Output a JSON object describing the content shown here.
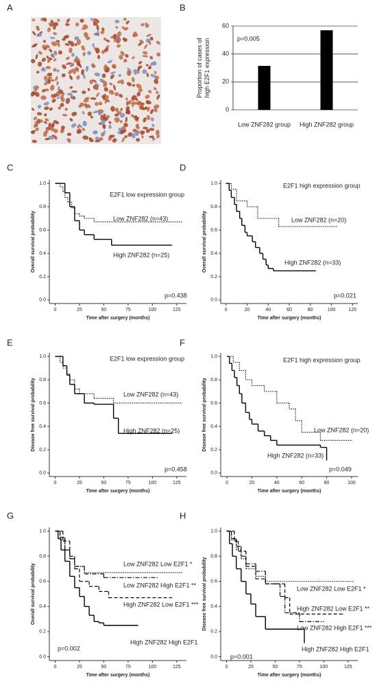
{
  "chart_data": [
    {
      "type": "image",
      "panel": "A"
    },
    {
      "type": "bar",
      "panel": "B",
      "y_label": [
        "Proportion of cases of",
        "high E2F1 expression"
      ],
      "categories": [
        "Low ZNF282 group",
        "High ZNF282 group"
      ],
      "values": [
        31.5,
        57
      ],
      "color": "#000000",
      "ylim": [
        0,
        60
      ],
      "yticks": [
        0,
        20,
        40,
        60
      ],
      "grid": true,
      "annotations": [
        "p=0.005"
      ]
    },
    {
      "type": "step",
      "panel": "C",
      "y_label": "Overall survival probability",
      "x_label": "Time after surgery (months)",
      "xlim": [
        -6,
        135
      ],
      "ylim": [
        -0.03,
        1.03
      ],
      "xticks": [
        0,
        25,
        50,
        75,
        100,
        125
      ],
      "yticks": [
        {
          "value": 0,
          "label": "0.0"
        },
        0.2,
        0.4,
        0.6,
        0.8,
        {
          "value": 1,
          "label": "1.0"
        }
      ],
      "series": [
        {
          "style": "dotted",
          "color": "#000000",
          "x": [
            0,
            5,
            8,
            10,
            13,
            17,
            20,
            25,
            30,
            40,
            130
          ],
          "values": [
            1,
            0.97,
            0.93,
            0.88,
            0.84,
            0.79,
            0.74,
            0.72,
            0.7,
            0.67,
            0.67
          ]
        },
        {
          "style": "solid",
          "color": "#000000",
          "x": [
            0,
            10,
            15,
            20,
            25,
            30,
            40,
            58,
            120
          ],
          "values": [
            1,
            0.92,
            0.8,
            0.68,
            0.6,
            0.56,
            0.52,
            0.47,
            0.47
          ]
        }
      ],
      "annotations": [
        "E2F1 low expression group",
        "Low ZNF282 (n=43)",
        "High ZNF282 (n=25)",
        "p=0.438"
      ]
    },
    {
      "type": "step",
      "panel": "D",
      "y_label": "Overall survival probability",
      "x_label": "Time after surgery (months)",
      "xlim": [
        -5,
        125
      ],
      "ylim": [
        -0.03,
        1.03
      ],
      "xticks": [
        0,
        20,
        40,
        60,
        80,
        100,
        120
      ],
      "yticks": [
        {
          "value": 0,
          "label": "0.0"
        },
        0.2,
        0.4,
        0.6,
        0.8,
        {
          "value": 1,
          "label": "1.0"
        }
      ],
      "series": [
        {
          "style": "dotted",
          "color": "#000000",
          "x": [
            0,
            5,
            10,
            20,
            30,
            50,
            105
          ],
          "values": [
            1,
            0.95,
            0.85,
            0.8,
            0.7,
            0.63,
            0.63
          ]
        },
        {
          "style": "solid",
          "color": "#000000",
          "x": [
            0,
            3,
            5,
            8,
            10,
            13,
            15,
            18,
            20,
            25,
            28,
            32,
            35,
            38,
            40,
            45,
            85
          ],
          "values": [
            1,
            0.94,
            0.88,
            0.82,
            0.76,
            0.7,
            0.64,
            0.58,
            0.55,
            0.5,
            0.45,
            0.4,
            0.35,
            0.3,
            0.27,
            0.25,
            0.25
          ]
        }
      ],
      "annotations": [
        "E2F1 high expression group",
        "Low ZNF282 (n=20)",
        "High ZNF282 (n=33)",
        "p=0.021"
      ]
    },
    {
      "type": "step",
      "panel": "E",
      "y_label": "Disease free survival probability",
      "x_label": "Time after surgery (months)",
      "xlim": [
        -6,
        135
      ],
      "ylim": [
        -0.03,
        1.03
      ],
      "xticks": [
        0,
        25,
        50,
        75,
        100,
        125
      ],
      "yticks": [
        {
          "value": 0,
          "label": "0.0"
        },
        0.2,
        0.4,
        0.6,
        0.8,
        {
          "value": 1,
          "label": "1.0"
        }
      ],
      "series": [
        {
          "style": "dotted",
          "color": "#000000",
          "x": [
            0,
            5,
            8,
            12,
            15,
            20,
            25,
            40,
            60,
            130
          ],
          "values": [
            1,
            0.95,
            0.9,
            0.85,
            0.8,
            0.72,
            0.68,
            0.64,
            0.6,
            0.6
          ]
        },
        {
          "style": "solid",
          "color": "#000000",
          "x": [
            0,
            8,
            12,
            15,
            20,
            30,
            40,
            60,
            65,
            120
          ],
          "values": [
            1,
            0.92,
            0.84,
            0.76,
            0.68,
            0.6,
            0.59,
            0.47,
            0.34,
            0.34
          ]
        }
      ],
      "annotations": [
        "E2F1 low expression group",
        "Low ZNF282 (n=43)",
        "High ZNF282 (n=25)",
        "p=0.458"
      ]
    },
    {
      "type": "step",
      "panel": "F",
      "y_label": "Disease free survival probability",
      "x_label": "Time after surgery (months)",
      "xlim": [
        -5,
        105
      ],
      "ylim": [
        -0.03,
        1.03
      ],
      "xticks": [
        0,
        20,
        40,
        60,
        80,
        100
      ],
      "yticks": [
        {
          "value": 0,
          "label": "0.0"
        },
        0.2,
        0.4,
        0.6,
        0.8,
        {
          "value": 1,
          "label": "1.0"
        }
      ],
      "series": [
        {
          "style": "dotted",
          "color": "#000000",
          "x": [
            0,
            5,
            10,
            15,
            20,
            30,
            40,
            50,
            55,
            60,
            75,
            100
          ],
          "values": [
            1,
            0.95,
            0.88,
            0.8,
            0.75,
            0.7,
            0.6,
            0.55,
            0.45,
            0.35,
            0.28,
            0.28
          ]
        },
        {
          "style": "solid",
          "color": "#000000",
          "x": [
            0,
            2,
            4,
            6,
            8,
            10,
            12,
            15,
            18,
            20,
            25,
            30,
            35,
            40,
            75,
            80
          ],
          "values": [
            1,
            0.94,
            0.88,
            0.82,
            0.75,
            0.68,
            0.6,
            0.52,
            0.46,
            0.42,
            0.36,
            0.32,
            0.28,
            0.24,
            0.22,
            0.11
          ]
        }
      ],
      "annotations": [
        "E2F1 high expression group",
        "Low ZNF282 (n=20)",
        "High ZNF282 (n=33)",
        "p=0.049"
      ]
    },
    {
      "type": "step",
      "panel": "G",
      "y_label": "Overall survival probability",
      "x_label": "Time after surgery (months)",
      "xlim": [
        -6,
        135
      ],
      "ylim": [
        -0.03,
        1.03
      ],
      "xticks": [
        0,
        25,
        50,
        75,
        100,
        125
      ],
      "yticks": [
        {
          "value": 0,
          "label": "0.0"
        },
        0.2,
        0.4,
        0.6,
        0.8,
        {
          "value": 1,
          "label": "1.0"
        }
      ],
      "series": [
        {
          "style": "dotted",
          "color": "#000000",
          "x": [
            0,
            5,
            10,
            15,
            20,
            30,
            130
          ],
          "values": [
            1,
            0.93,
            0.85,
            0.78,
            0.72,
            0.67,
            0.67
          ]
        },
        {
          "style": "dashdot",
          "color": "#000000",
          "x": [
            0,
            5,
            10,
            15,
            20,
            30,
            50,
            105
          ],
          "values": [
            1,
            0.95,
            0.85,
            0.78,
            0.72,
            0.66,
            0.63,
            0.63
          ]
        },
        {
          "style": "dashed",
          "color": "#000000",
          "x": [
            0,
            8,
            15,
            20,
            25,
            35,
            45,
            55,
            120
          ],
          "values": [
            1,
            0.92,
            0.8,
            0.7,
            0.6,
            0.56,
            0.52,
            0.47,
            0.47
          ]
        },
        {
          "style": "solid",
          "color": "#000000",
          "x": [
            0,
            3,
            6,
            10,
            15,
            20,
            25,
            30,
            35,
            40,
            45,
            50,
            85
          ],
          "values": [
            1,
            0.94,
            0.85,
            0.76,
            0.64,
            0.55,
            0.48,
            0.4,
            0.33,
            0.28,
            0.27,
            0.25,
            0.25
          ]
        }
      ],
      "annotations": [
        "Low ZNF282 Low E2F1 *",
        "Low ZNF282 High E2F1 **",
        "High ZNF282 Low E2F1 ***",
        "High ZNF282 High E2F1",
        "p=0.002"
      ]
    },
    {
      "type": "step",
      "panel": "H",
      "y_label": "Disease free survival probability",
      "x_label": "Time after surgery (months)",
      "xlim": [
        -6,
        135
      ],
      "ylim": [
        -0.03,
        1.03
      ],
      "xticks": [
        0,
        25,
        50,
        75,
        100,
        125
      ],
      "yticks": [
        {
          "value": 0,
          "label": "0.0"
        },
        0.2,
        0.4,
        0.6,
        0.8,
        {
          "value": 1,
          "label": "1.0"
        }
      ],
      "series": [
        {
          "style": "dotted",
          "color": "#000000",
          "x": [
            0,
            5,
            10,
            15,
            20,
            30,
            40,
            130
          ],
          "values": [
            1,
            0.93,
            0.85,
            0.78,
            0.7,
            0.64,
            0.6,
            0.6
          ]
        },
        {
          "style": "dashed",
          "color": "#000000",
          "x": [
            0,
            8,
            12,
            20,
            30,
            40,
            60,
            65,
            120
          ],
          "values": [
            1,
            0.92,
            0.84,
            0.72,
            0.62,
            0.58,
            0.47,
            0.34,
            0.34
          ]
        },
        {
          "style": "dashdot",
          "color": "#000000",
          "x": [
            0,
            5,
            10,
            15,
            20,
            30,
            40,
            55,
            60,
            75,
            100
          ],
          "values": [
            1,
            0.94,
            0.88,
            0.8,
            0.74,
            0.68,
            0.58,
            0.48,
            0.35,
            0.28,
            0.28
          ]
        },
        {
          "style": "solid",
          "color": "#000000",
          "x": [
            0,
            3,
            6,
            10,
            15,
            20,
            25,
            30,
            40,
            75,
            80
          ],
          "values": [
            1,
            0.9,
            0.8,
            0.7,
            0.6,
            0.5,
            0.42,
            0.32,
            0.22,
            0.22,
            0.11
          ]
        }
      ],
      "annotations": [
        "Low ZNF282 Low E2F1 *",
        "High ZNF282 Low E2F1 **",
        "Low ZNF282 High E2F1 ***",
        "High ZNF282 High E2F1",
        "p=0.001"
      ]
    }
  ]
}
